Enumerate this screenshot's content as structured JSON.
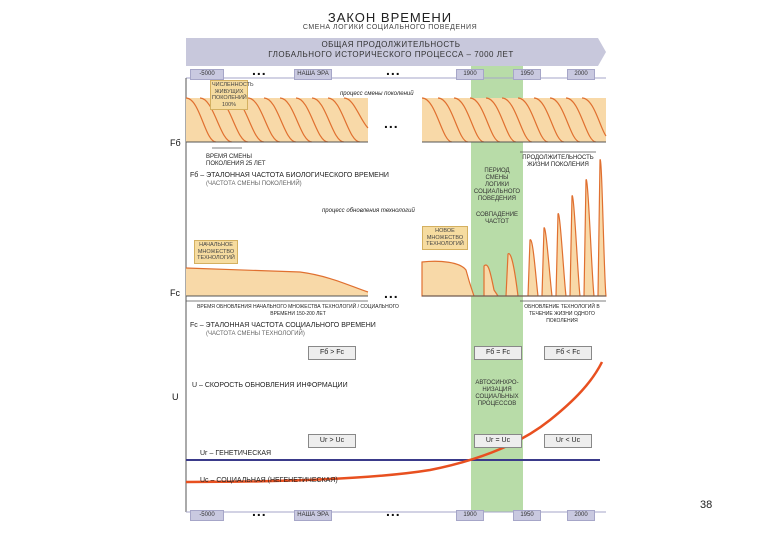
{
  "title": "ЗАКОН ВРЕМЕНИ",
  "subtitle": "СМЕНА ЛОГИКИ СОЦИАЛЬНОГО ПОВЕДЕНИЯ",
  "banner": {
    "line1": "ОБЩАЯ ПРОДОЛЖИТЕЛЬНОСТЬ",
    "line2": "ГЛОБАЛЬНОГО ИСТОРИЧЕСКОГО ПРОЦЕССА – 7000 ЛЕТ"
  },
  "timeline_top": [
    "-5000",
    "НАША ЭРА",
    "1900",
    "1950",
    "2000"
  ],
  "timeline_bottom": [
    "-5000",
    "НАША ЭРА",
    "1900",
    "1950",
    "2000"
  ],
  "ellipsis": "...",
  "notes": {
    "generation_lifetime": "ЧИСЛЕННОСТЬ ЖИВУЩИХ ПОКОЛЕНИЙ 100%",
    "generation_process": "процесс смены поколений",
    "generation_duration": "ВРЕМЯ СМЕНЫ ПОКОЛЕНИЯ 25 ЛЕТ",
    "fb_definition": "Fб – ЭТАЛОННАЯ ЧАСТОТА БИОЛОГИЧЕСКОГО ВРЕМЕНИ",
    "fb_sub": "(ЧАСТОТА СМЕНЫ ПОКОЛЕНИЙ)",
    "tech_process": "процесс обновления технологий",
    "initial_tech": "НАЧАЛЬНОЕ МНОЖЕСТВО ТЕХНОЛОГИЙ",
    "new_tech": "НОВОЕ МНОЖЕСТВО ТЕХНОЛОГИЙ",
    "tech_span": "ВРЕМЯ ОБНОВЛЕНИЯ НАЧАЛЬНОГО МНОЖЕСТВА ТЕХНОЛОГИЙ / СОЦИАЛЬНОГО ВРЕМЕНИ 150-200 ЛЕТ",
    "fc_definition": "Fс – ЭТАЛОННАЯ ЧАСТОТА СОЦИАЛЬНОГО ВРЕМЕНИ",
    "fc_sub": "(ЧАСТОТА СМЕНЫ ТЕХНОЛОГИЙ)",
    "generation_life_right": "ПРОДОЛЖИТЕЛЬНОСТЬ ЖИЗНИ ПОКОЛЕНИЯ",
    "tech_right": "ОБНОВЛЕНИЕ ТЕХНОЛОГИЙ В ТЕЧЕНИЕ ЖИЗНИ ОДНОГО ПОКОЛЕНИЯ",
    "u_definition": "U – СКОРОСТЬ ОБНОВЛЕНИЯ ИНФОРМАЦИИ"
  },
  "green": {
    "period": "ПЕРИОД СМЕНЫ ЛОГИКИ СОЦИАЛЬНОГО ПОВЕДЕНИЯ",
    "coincide": "СОВПАДЕНИЕ ЧАСТОТ",
    "autosync": "АВТОСИНХРО-НИЗАЦИЯ СОЦИАЛЬНЫХ ПРОЦЕССОВ"
  },
  "axis_labels": {
    "fb": "Fб",
    "fc": "Fс",
    "u": "U"
  },
  "compare": {
    "left": "Fб > Fс",
    "middle": "Fб = Fс",
    "right": "Fб < Fс",
    "u_middle": "Uг = Uс",
    "u_left": "Uг > Uс",
    "u_right": "Uг < Uс"
  },
  "lines": {
    "genetic": "Uг – ГЕНЕТИЧЕСКАЯ",
    "social": "Uс – СОЦИАЛЬНАЯ (НЕГЕНЕТИЧЕСКАЯ)"
  },
  "page_number": "38",
  "colors": {
    "orange_fill": "#f8d9a8",
    "orange_line": "#e07030",
    "blue_line": "#3a3a8a",
    "red_curve": "#e85020",
    "green_band": "#b8dca8",
    "banner": "#c8c8dc"
  }
}
